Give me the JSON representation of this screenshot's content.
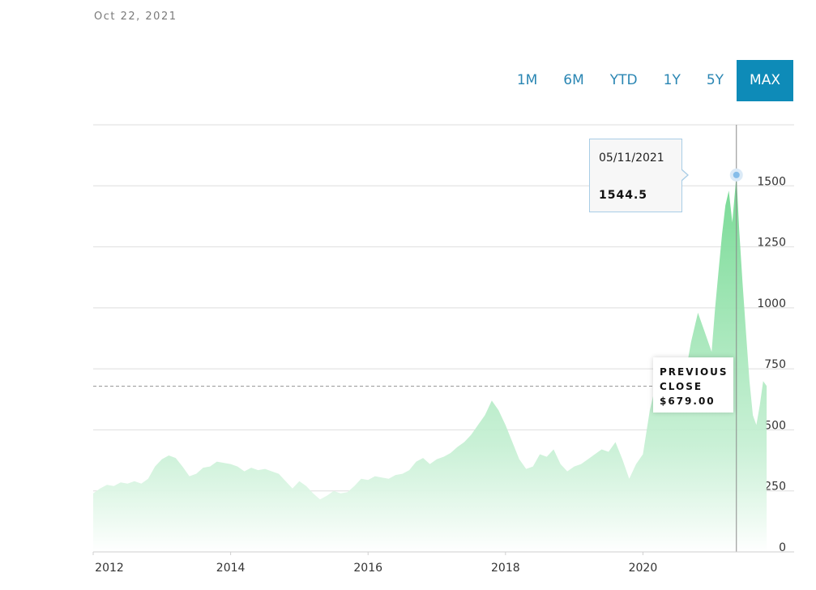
{
  "header": {
    "date": "Oct 22, 2021"
  },
  "range_buttons": [
    {
      "label": "1M",
      "active": false
    },
    {
      "label": "6M",
      "active": false
    },
    {
      "label": "YTD",
      "active": false
    },
    {
      "label": "1Y",
      "active": false
    },
    {
      "label": "5Y",
      "active": false
    },
    {
      "label": "MAX",
      "active": true
    }
  ],
  "tooltip": {
    "date": "05/11/2021",
    "value": "1544.5"
  },
  "previous_close": {
    "line1": "PREVIOUS",
    "line2": "CLOSE",
    "value": "$679.00"
  },
  "colors": {
    "area": "#7fdc9a",
    "accent": "#0e8bb8",
    "marker": "#7fb8e6"
  },
  "chart_data": {
    "type": "area",
    "title": "",
    "xlabel": "",
    "ylabel": "",
    "x_ticks": [
      "2012",
      "2014",
      "2016",
      "2018",
      "2020"
    ],
    "x_tick_years": [
      2012,
      2014,
      2016,
      2018,
      2020
    ],
    "y_ticks": [
      0,
      250,
      500,
      750,
      1000,
      1250,
      1500
    ],
    "ylim": [
      0,
      1750
    ],
    "xlim": [
      2012.0,
      2022.2
    ],
    "grid": true,
    "previous_close": 679.0,
    "peak": {
      "date": "05/11/2021",
      "x": 2021.36,
      "value": 1544.5
    },
    "series": [
      {
        "x": [
          2012.0,
          2012.1,
          2012.2,
          2012.3,
          2012.4,
          2012.5,
          2012.6,
          2012.7,
          2012.8,
          2012.9,
          2013.0,
          2013.1,
          2013.2,
          2013.3,
          2013.4,
          2013.5,
          2013.6,
          2013.7,
          2013.8,
          2013.9,
          2014.0,
          2014.1,
          2014.2,
          2014.3,
          2014.4,
          2014.5,
          2014.6,
          2014.7,
          2014.8,
          2014.9,
          2015.0,
          2015.1,
          2015.2,
          2015.3,
          2015.4,
          2015.5,
          2015.6,
          2015.7,
          2015.8,
          2015.9,
          2016.0,
          2016.1,
          2016.2,
          2016.3,
          2016.4,
          2016.5,
          2016.6,
          2016.7,
          2016.8,
          2016.9,
          2017.0,
          2017.1,
          2017.2,
          2017.3,
          2017.4,
          2017.5,
          2017.6,
          2017.7,
          2017.8,
          2017.9,
          2018.0,
          2018.1,
          2018.2,
          2018.3,
          2018.4,
          2018.5,
          2018.6,
          2018.7,
          2018.8,
          2018.9,
          2019.0,
          2019.1,
          2019.2,
          2019.3,
          2019.4,
          2019.5,
          2019.6,
          2019.7,
          2019.8,
          2019.9,
          2020.0,
          2020.1,
          2020.2,
          2020.3,
          2020.4,
          2020.5,
          2020.6,
          2020.7,
          2020.8,
          2020.9,
          2021.0,
          2021.05,
          2021.1,
          2021.15,
          2021.2,
          2021.25,
          2021.3,
          2021.36,
          2021.4,
          2021.45,
          2021.5,
          2021.55,
          2021.6,
          2021.65,
          2021.7,
          2021.75,
          2021.8
        ],
        "values": [
          240,
          260,
          275,
          270,
          285,
          280,
          290,
          280,
          300,
          350,
          380,
          395,
          385,
          350,
          310,
          320,
          345,
          350,
          370,
          365,
          360,
          350,
          330,
          345,
          335,
          340,
          330,
          320,
          290,
          260,
          290,
          270,
          240,
          215,
          230,
          250,
          240,
          245,
          270,
          300,
          295,
          310,
          305,
          300,
          315,
          320,
          335,
          370,
          385,
          360,
          380,
          390,
          405,
          430,
          450,
          480,
          520,
          560,
          620,
          580,
          520,
          450,
          380,
          340,
          350,
          400,
          390,
          420,
          360,
          330,
          350,
          360,
          380,
          400,
          420,
          410,
          450,
          380,
          300,
          360,
          400,
          580,
          700,
          780,
          720,
          650,
          700,
          860,
          980,
          900,
          820,
          1000,
          1150,
          1300,
          1420,
          1480,
          1350,
          1544.5,
          1320,
          1100,
          900,
          700,
          560,
          520,
          600,
          700,
          680
        ]
      }
    ]
  }
}
